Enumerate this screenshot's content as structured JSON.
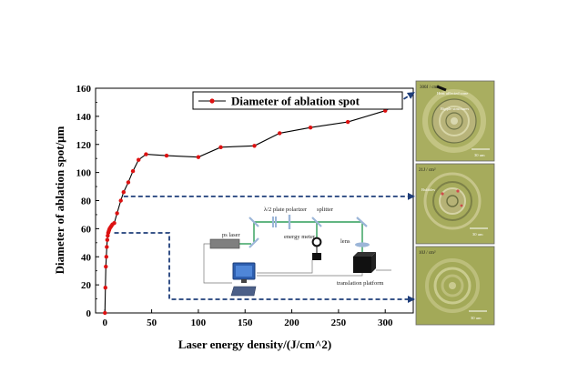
{
  "chart_data": {
    "type": "line",
    "title": "",
    "xlabel": "Laser energy density/(J/cm^2)",
    "ylabel": "Diameter of ablation spot/μm",
    "xlim": [
      -10,
      330
    ],
    "ylim": [
      0,
      160
    ],
    "xticks": [
      0,
      50,
      100,
      150,
      200,
      250,
      300
    ],
    "yticks": [
      0,
      20,
      40,
      60,
      80,
      100,
      120,
      140,
      160
    ],
    "legend": {
      "label": "Diameter of ablation spot",
      "position": "top-right"
    },
    "series": [
      {
        "name": "Diameter of ablation spot",
        "color": "#dd1111",
        "x": [
          0,
          0.5,
          1,
          1.5,
          2,
          2.5,
          3,
          3.5,
          4,
          4.5,
          5,
          6,
          7,
          8,
          10,
          13,
          17,
          20,
          25,
          30,
          36,
          44,
          66,
          100,
          124,
          160,
          187,
          220,
          260,
          300
        ],
        "y": [
          0,
          18,
          33,
          40,
          47,
          52,
          55,
          57,
          58,
          59,
          60,
          61,
          62,
          63,
          64,
          71,
          80,
          86,
          93,
          101,
          109,
          113,
          112,
          111,
          118,
          119,
          128,
          132,
          136,
          144
        ]
      }
    ],
    "thresholds": [
      {
        "y": 57,
        "x": 10
      },
      {
        "y": 83,
        "x": 20
      },
      {
        "y": 144,
        "x": 300
      }
    ]
  },
  "inset": {
    "ps_laser": "ps laser",
    "half_wave_plate": "λ/2 plate",
    "polarizer": "polarizer",
    "splitter": "splitter",
    "energy_meter": "energy meter",
    "lens": "lens",
    "translation_platform": "translation platform"
  },
  "micrographs": [
    {
      "fluence": "300J / cm²",
      "labels": [
        "Heat affected zone",
        "Ripple structures"
      ],
      "scale": "30 um"
    },
    {
      "fluence": "21J / cm²",
      "labels": [
        "Bubbles"
      ],
      "scale": "30 um"
    },
    {
      "fluence": "10J / cm²",
      "labels": [],
      "scale": "30 um"
    }
  ],
  "colors": {
    "accent": "#1f3e7a",
    "micrograph_bg": "#a8ac5e",
    "inset_beam": "#2f9e58"
  }
}
